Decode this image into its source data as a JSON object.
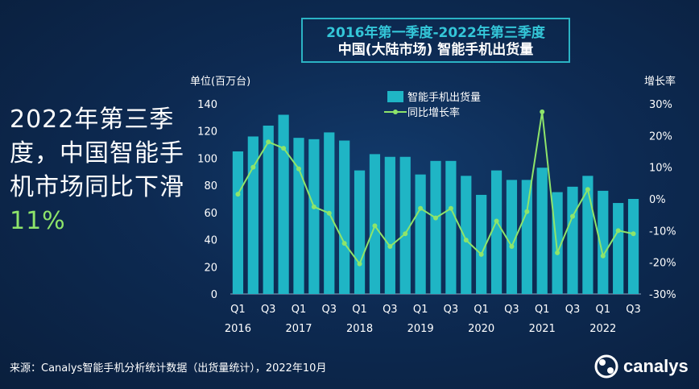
{
  "title": {
    "line1": "2016年第一季度-2022年第三季度",
    "line2": "中国(大陆市场) 智能手机出货量"
  },
  "headline": {
    "text_part1": "2022年第三季度，中国智能手机市场同比下滑",
    "highlight": "11%"
  },
  "source": "来源：Canalys智能手机分析统计数据（出货量统计），2022年10月",
  "logo_text": "canalys",
  "colors": {
    "bar": "#1fb5c5",
    "line": "#8ee46a",
    "accent": "#34c6d8"
  },
  "chart_data": {
    "type": "bar+line",
    "left_axis_label": "单位(百万台)",
    "right_axis_label": "增长率",
    "ylim_left": [
      0,
      140
    ],
    "yticks_left": [
      "0",
      "20",
      "40",
      "60",
      "80",
      "100",
      "120",
      "140"
    ],
    "ylim_right": [
      -30,
      30
    ],
    "yticks_right": [
      "-30%",
      "-20%",
      "-10%",
      "0%",
      "10%",
      "20%",
      "30%"
    ],
    "grid": false,
    "legend_position": "top-center",
    "quarter_labels": [
      "Q1",
      "",
      "Q3",
      "",
      "Q1",
      "",
      "Q3",
      "",
      "Q1",
      "",
      "Q3",
      "",
      "Q1",
      "",
      "Q3",
      "",
      "Q1",
      "",
      "Q3",
      "",
      "Q1",
      "",
      "Q3",
      "",
      "Q1",
      "",
      "Q3"
    ],
    "year_labels": [
      {
        "year": "2016",
        "index": 0
      },
      {
        "year": "2017",
        "index": 4
      },
      {
        "year": "2018",
        "index": 8
      },
      {
        "year": "2019",
        "index": 12
      },
      {
        "year": "2020",
        "index": 16
      },
      {
        "year": "2021",
        "index": 20
      },
      {
        "year": "2022",
        "index": 24
      }
    ],
    "series": [
      {
        "name": "智能手机出货量",
        "type": "bar",
        "values": [
          105,
          116,
          124,
          132,
          115,
          114,
          119,
          113,
          91,
          103,
          101,
          101,
          88,
          98,
          98,
          87,
          73,
          91,
          84,
          84,
          93,
          75,
          79,
          87,
          76,
          67,
          70
        ]
      },
      {
        "name": "同比增长率",
        "type": "line",
        "values": [
          1.5,
          10,
          18,
          16,
          9.5,
          -2.5,
          -4.5,
          -14,
          -20.5,
          -8.5,
          -15,
          -11,
          -3,
          -6,
          -3,
          -13,
          -17.5,
          -7,
          -15,
          -4,
          27.5,
          -17,
          -5.5,
          3,
          -18,
          -10,
          -11
        ]
      }
    ]
  }
}
